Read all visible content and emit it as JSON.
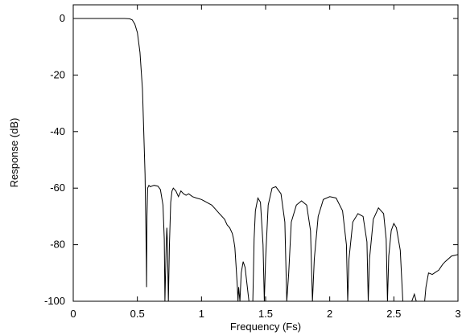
{
  "chart_data": {
    "type": "line",
    "title": "",
    "xlabel": "Frequency (Fs)",
    "ylabel": "Response (dB)",
    "xlim": [
      0,
      3
    ],
    "ylim": [
      -100,
      5
    ],
    "grid": false,
    "x_ticks": [
      0,
      0.5,
      1,
      1.5,
      2,
      2.5,
      3
    ],
    "x_tick_labels": [
      "0",
      "0.5",
      "1",
      "1.5",
      "2",
      "2.5",
      "3"
    ],
    "y_ticks": [
      0,
      -20,
      -40,
      -60,
      -80,
      -100
    ],
    "y_tick_labels": [
      "0",
      "-20",
      "-40",
      "-60",
      "-80",
      "-100"
    ],
    "line_color": "#000000",
    "series": [
      {
        "points": [
          [
            0.0,
            0.0
          ],
          [
            0.2,
            0.0
          ],
          [
            0.4,
            0.0
          ],
          [
            0.44,
            -0.1
          ],
          [
            0.46,
            -0.5
          ],
          [
            0.48,
            -2
          ],
          [
            0.5,
            -5
          ],
          [
            0.52,
            -12
          ],
          [
            0.54,
            -25
          ],
          [
            0.55,
            -40
          ],
          [
            0.56,
            -55
          ],
          [
            0.565,
            -70
          ],
          [
            0.57,
            -85
          ],
          [
            0.572,
            -95
          ],
          [
            0.575,
            -70
          ],
          [
            0.58,
            -60
          ],
          [
            0.59,
            -59
          ],
          [
            0.6,
            -59.5
          ],
          [
            0.63,
            -59
          ],
          [
            0.66,
            -59.3
          ],
          [
            0.68,
            -60.5
          ],
          [
            0.7,
            -66
          ],
          [
            0.71,
            -78
          ],
          [
            0.715,
            -100
          ],
          [
            0.725,
            -80
          ],
          [
            0.73,
            -74
          ],
          [
            0.735,
            -80
          ],
          [
            0.742,
            -100
          ],
          [
            0.75,
            -80
          ],
          [
            0.76,
            -65
          ],
          [
            0.77,
            -61
          ],
          [
            0.78,
            -60
          ],
          [
            0.8,
            -61
          ],
          [
            0.82,
            -63
          ],
          [
            0.84,
            -61
          ],
          [
            0.86,
            -62
          ],
          [
            0.88,
            -62.5
          ],
          [
            0.9,
            -62
          ],
          [
            0.93,
            -63
          ],
          [
            0.96,
            -63.5
          ],
          [
            1.0,
            -64
          ],
          [
            1.04,
            -65
          ],
          [
            1.08,
            -66
          ],
          [
            1.1,
            -67
          ],
          [
            1.14,
            -69
          ],
          [
            1.18,
            -71
          ],
          [
            1.2,
            -73
          ],
          [
            1.22,
            -74
          ],
          [
            1.24,
            -76
          ],
          [
            1.25,
            -78
          ],
          [
            1.26,
            -81
          ],
          [
            1.27,
            -88
          ],
          [
            1.28,
            -95
          ],
          [
            1.285,
            -100
          ],
          [
            1.29,
            -95
          ],
          [
            1.3,
            -100
          ],
          [
            1.31,
            -90
          ],
          [
            1.325,
            -86
          ],
          [
            1.34,
            -88
          ],
          [
            1.36,
            -96
          ],
          [
            1.37,
            -100
          ],
          [
            1.4,
            -100
          ],
          [
            1.405,
            -90
          ],
          [
            1.41,
            -78
          ],
          [
            1.42,
            -68
          ],
          [
            1.44,
            -63.5
          ],
          [
            1.46,
            -65
          ],
          [
            1.48,
            -80
          ],
          [
            1.49,
            -100
          ],
          [
            1.5,
            -85
          ],
          [
            1.52,
            -66
          ],
          [
            1.55,
            -60
          ],
          [
            1.58,
            -59.5
          ],
          [
            1.62,
            -62
          ],
          [
            1.65,
            -72
          ],
          [
            1.665,
            -100
          ],
          [
            1.68,
            -90
          ],
          [
            1.7,
            -72
          ],
          [
            1.74,
            -66
          ],
          [
            1.78,
            -64.5
          ],
          [
            1.82,
            -66
          ],
          [
            1.85,
            -75
          ],
          [
            1.865,
            -100
          ],
          [
            1.88,
            -85
          ],
          [
            1.91,
            -70
          ],
          [
            1.95,
            -64
          ],
          [
            2.0,
            -63
          ],
          [
            2.05,
            -63.5
          ],
          [
            2.1,
            -68
          ],
          [
            2.13,
            -80
          ],
          [
            2.14,
            -100
          ],
          [
            2.15,
            -85
          ],
          [
            2.18,
            -72
          ],
          [
            2.22,
            -69
          ],
          [
            2.26,
            -70
          ],
          [
            2.29,
            -79
          ],
          [
            2.3,
            -100
          ],
          [
            2.31,
            -85
          ],
          [
            2.34,
            -71
          ],
          [
            2.38,
            -67
          ],
          [
            2.42,
            -69
          ],
          [
            2.44,
            -78
          ],
          [
            2.45,
            -100
          ],
          [
            2.46,
            -84
          ],
          [
            2.48,
            -75
          ],
          [
            2.5,
            -72.5
          ],
          [
            2.52,
            -74
          ],
          [
            2.55,
            -82
          ],
          [
            2.57,
            -100
          ],
          [
            2.64,
            -100
          ],
          [
            2.66,
            -97.5
          ],
          [
            2.675,
            -100
          ],
          [
            2.74,
            -100
          ],
          [
            2.75,
            -95
          ],
          [
            2.77,
            -90
          ],
          [
            2.8,
            -90.5
          ],
          [
            2.85,
            -89
          ],
          [
            2.88,
            -87
          ],
          [
            2.9,
            -86
          ],
          [
            2.95,
            -84
          ],
          [
            3.0,
            -83.5
          ]
        ]
      }
    ]
  }
}
